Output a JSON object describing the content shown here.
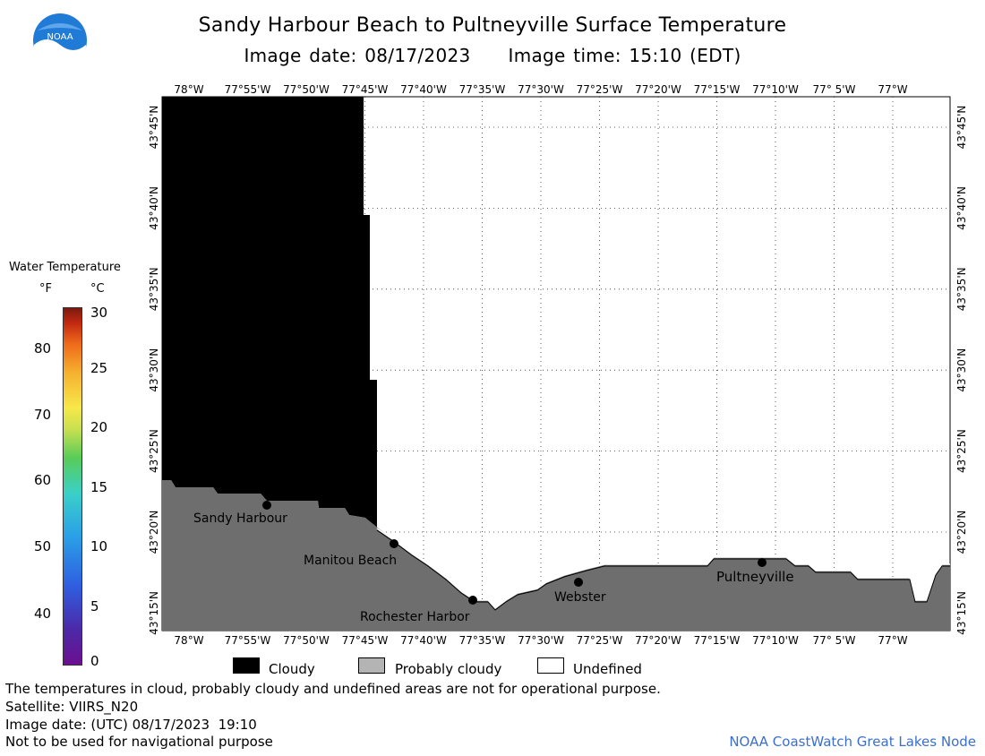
{
  "title": "Sandy Harbour Beach to Pultneyville Surface Temperature",
  "image_date_label": "Image date: 08/17/2023",
  "image_time_label": "Image time: 15:10 (EDT)",
  "logo_text": "NOAA",
  "legend": {
    "title": "Water Temperature",
    "unit_f": "°F",
    "unit_c": "°C",
    "f_ticks": [
      "80",
      "70",
      "60",
      "50",
      "40"
    ],
    "c_ticks": [
      "30",
      "25",
      "20",
      "15",
      "10",
      "5",
      "0"
    ]
  },
  "lon_labels": [
    "78°W",
    "77°55'W",
    "77°50'W",
    "77°45'W",
    "77°40'W",
    "77°35'W",
    "77°30'W",
    "77°25'W",
    "77°20'W",
    "77°15'W",
    "77°10'W",
    "77° 5'W",
    "77°W"
  ],
  "lat_labels": [
    "43°45'N",
    "43°40'N",
    "43°35'N",
    "43°30'N",
    "43°25'N",
    "43°20'N",
    "43°15'N"
  ],
  "places": [
    "Sandy Harbour",
    "Manitou Beach",
    "Rochester Harbor",
    "Webster",
    "Pultneyville"
  ],
  "keys": {
    "cloudy": "Cloudy",
    "probably_cloudy": "Probably cloudy",
    "undefined": "Undefined"
  },
  "colors": {
    "cloudy": "#000000",
    "land": "#6e6e6e",
    "probably_cloudy": "#b4b4b4",
    "undefined": "#ffffff",
    "credit": "#3a6fd0"
  },
  "footer": {
    "disclaimer": "The temperatures in cloud, probably cloudy and undefined areas are not for operational purpose.",
    "satellite": "Satellite: VIIRS_N20",
    "image_date_utc": "Image date: (UTC) 08/17/2023  19:10",
    "nav_warning": "Not to be used for navigational purpose",
    "credit": "NOAA CoastWatch Great Lakes Node"
  }
}
